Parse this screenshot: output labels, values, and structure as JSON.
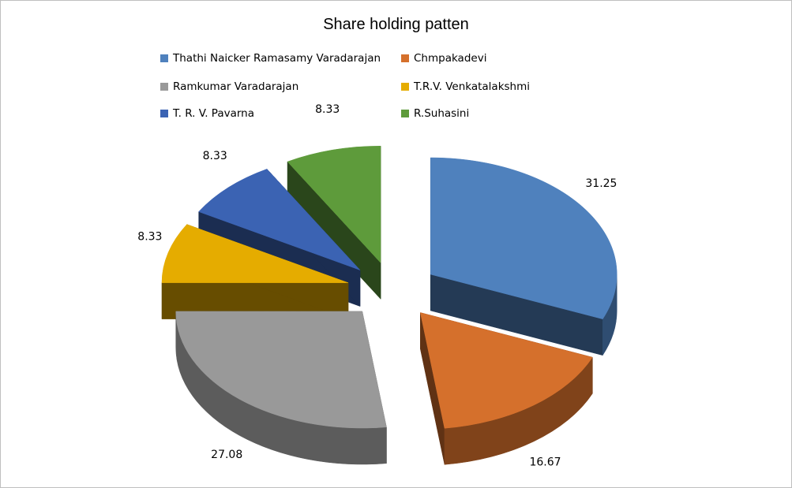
{
  "chart_data": {
    "type": "pie",
    "style": "3d-exploded",
    "title": "Share holding patten",
    "legend_position": "top",
    "slices": [
      {
        "name": "Thathi Naicker Ramasamy Varadarajan",
        "value": 31.25,
        "label": "31.25",
        "color": "#4F81BD"
      },
      {
        "name": "Chmpakadevi",
        "value": 16.67,
        "label": "16.67",
        "color": "#D5702C"
      },
      {
        "name": "Ramkumar Varadarajan",
        "value": 27.08,
        "label": "27.08",
        "color": "#999999"
      },
      {
        "name": "T.R.V. Venkatalakshmi",
        "value": 8.33,
        "label": "8.33",
        "color": "#E5AC00"
      },
      {
        "name": "T. R. V. Pavarna",
        "value": 8.33,
        "label": "8.33",
        "color": "#3B63B3"
      },
      {
        "name": "R.Suhasini",
        "value": 8.33,
        "label": "8.33",
        "color": "#5E9B3B"
      }
    ]
  }
}
